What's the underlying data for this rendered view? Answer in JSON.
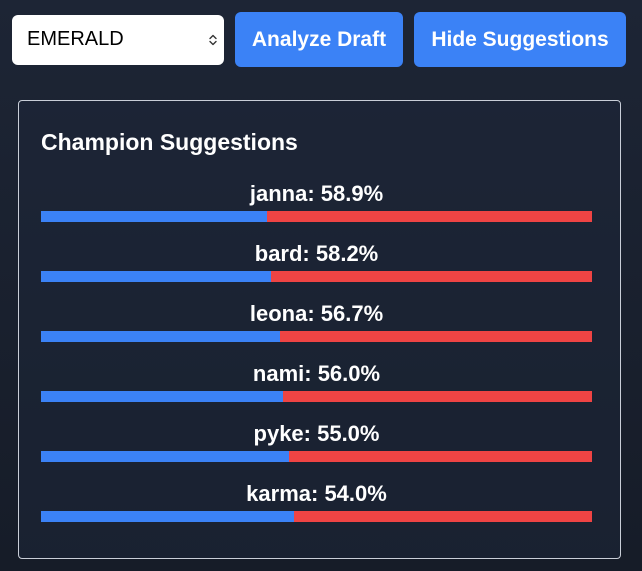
{
  "toolbar": {
    "rank_select": {
      "selected": "EMERALD"
    },
    "analyze_label": "Analyze Draft",
    "hide_label": "Hide Suggestions"
  },
  "suggestions": {
    "title": "Champion Suggestions",
    "items": [
      {
        "label": "janna: 58.9%",
        "win_rate": 58.9,
        "fill_fraction": 0.411
      },
      {
        "label": "bard: 58.2%",
        "win_rate": 58.2,
        "fill_fraction": 0.418
      },
      {
        "label": "leona: 56.7%",
        "win_rate": 56.7,
        "fill_fraction": 0.433
      },
      {
        "label": "nami: 56.0%",
        "win_rate": 56.0,
        "fill_fraction": 0.44
      },
      {
        "label": "pyke: 55.0%",
        "win_rate": 55.0,
        "fill_fraction": 0.45
      },
      {
        "label": "karma: 54.0%",
        "win_rate": 54.0,
        "fill_fraction": 0.46
      }
    ]
  },
  "colors": {
    "accent_blue": "#3b82f6",
    "bar_red": "#ef4444",
    "panel_border": "#c9ced8"
  },
  "icons": {
    "select_chevron": "chevron-up-down-icon"
  }
}
